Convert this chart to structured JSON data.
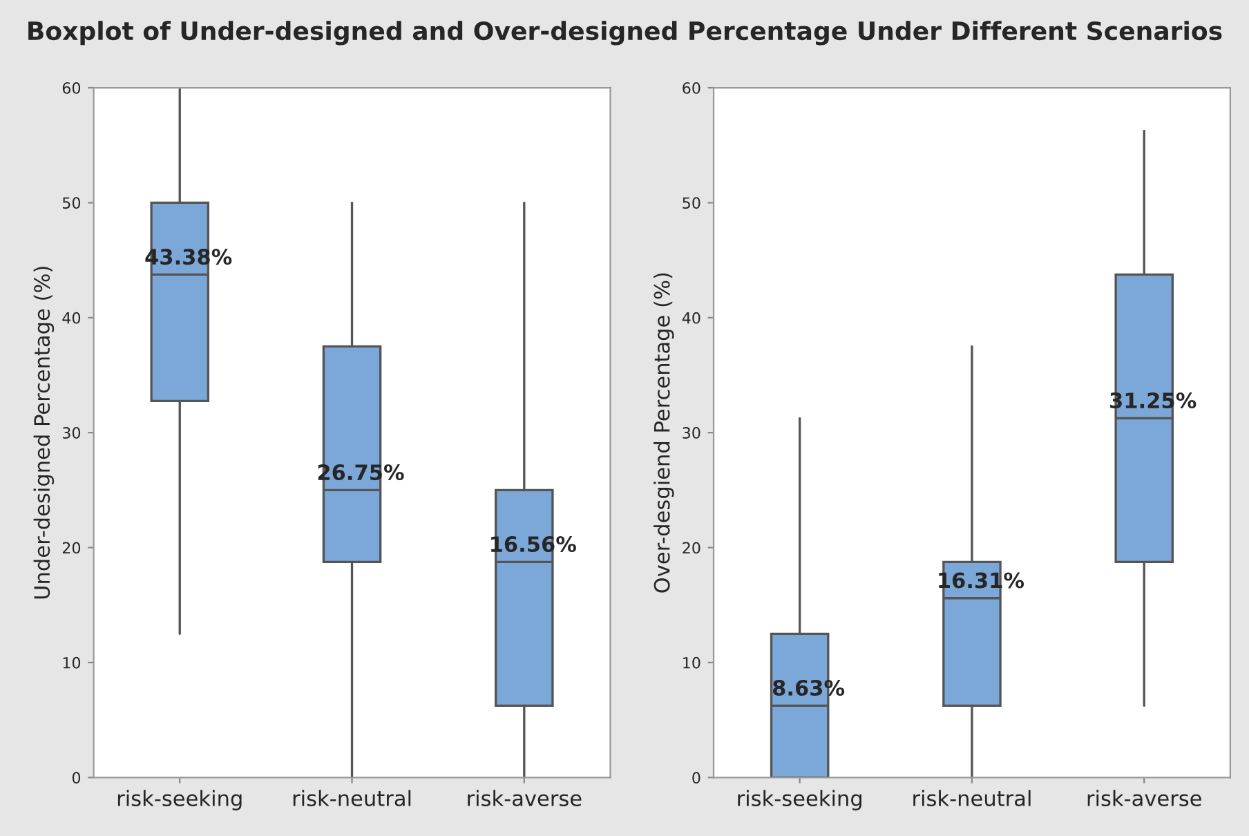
{
  "chart_data": [
    {
      "type": "box",
      "title": "Boxplot of Under-designed and Over-designed Percentage Under Different Scenarios",
      "ylabel": "Under-designed Percentage (%)",
      "categories": [
        "risk-seeking",
        "risk-neutral",
        "risk-averse"
      ],
      "color": "#7ba7d9",
      "ylim": [
        0,
        60
      ],
      "yticks": [
        0,
        10,
        20,
        30,
        40,
        50,
        60
      ],
      "grid": false,
      "legend": false,
      "boxes": [
        {
          "low": 12.5,
          "q1": 32.75,
          "median": 43.75,
          "q3": 50,
          "high": 60
        },
        {
          "low": 0,
          "q1": 18.75,
          "median": 25,
          "q3": 37.5,
          "high": 50
        },
        {
          "low": 0,
          "q1": 6.25,
          "median": 18.75,
          "q3": 25,
          "high": 50
        }
      ],
      "annotations": [
        "43.38%",
        "26.75%",
        "16.56%"
      ]
    },
    {
      "type": "box",
      "ylabel": "Over-desgiend Percentage (%)",
      "categories": [
        "risk-seeking",
        "risk-neutral",
        "risk-averse"
      ],
      "color": "#7ba7d9",
      "ylim": [
        0,
        60
      ],
      "yticks": [
        0,
        10,
        20,
        30,
        40,
        50,
        60
      ],
      "grid": false,
      "legend": false,
      "boxes": [
        {
          "low": 0,
          "q1": 0,
          "median": 6.25,
          "q3": 12.5,
          "high": 31.25
        },
        {
          "low": 0,
          "q1": 6.25,
          "median": 15.6,
          "q3": 18.75,
          "high": 37.5
        },
        {
          "low": 6.25,
          "q1": 18.75,
          "median": 31.25,
          "q3": 43.75,
          "high": 56.25
        }
      ],
      "annotations": [
        "8.63%",
        "16.31%",
        "31.25%"
      ]
    }
  ]
}
